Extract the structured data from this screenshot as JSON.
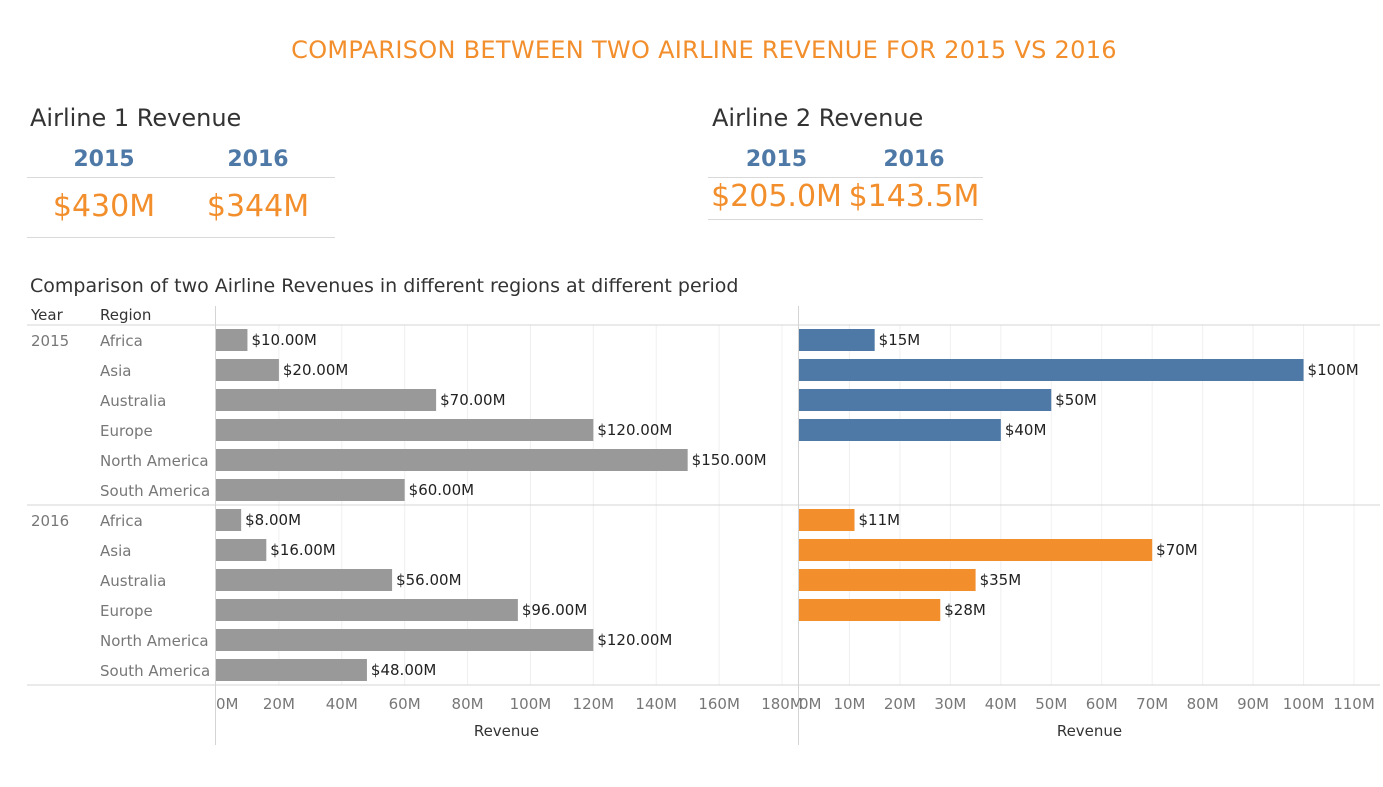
{
  "title": "COMPARISON BETWEEN TWO AIRLINE REVENUE FOR 2015 VS 2016",
  "airline1": {
    "title": "Airline 1 Revenue",
    "year_2015": "2015",
    "year_2016": "2016",
    "value_2015": "$430M",
    "value_2016": "$344M"
  },
  "airline2": {
    "title": "Airline 2 Revenue",
    "year_2015": "2015",
    "year_2016": "2016",
    "value_2015": "$205.0M",
    "value_2016": "$143.5M"
  },
  "colors": {
    "title": "#f28e2b",
    "kpi_year": "#4e79a7",
    "kpi_value": "#f28e2b",
    "airline1_bar": "#999999",
    "airline2_2015_bar": "#4e79a7",
    "airline2_2016_bar": "#f28e2b"
  },
  "chart_data": {
    "type": "bar",
    "orientation": "horizontal",
    "title": "Comparison of two Airline Revenues in different regions at different period",
    "row_headers": [
      "Year",
      "Region"
    ],
    "groups": [
      {
        "year": "2015",
        "regions": [
          "Africa",
          "Asia",
          "Australia",
          "Europe",
          "North America",
          "South America"
        ]
      },
      {
        "year": "2016",
        "regions": [
          "Africa",
          "Asia",
          "Australia",
          "Europe",
          "North America",
          "South America"
        ]
      }
    ],
    "panels": [
      {
        "xlabel": "Revenue",
        "xlim": [
          0,
          180
        ],
        "ticks": [
          "0M",
          "20M",
          "40M",
          "60M",
          "80M",
          "100M",
          "120M",
          "140M",
          "160M",
          "180M"
        ],
        "tick_values": [
          0,
          20,
          40,
          60,
          80,
          100,
          120,
          140,
          160,
          180
        ],
        "values": [
          [
            10,
            20,
            70,
            120,
            150,
            60
          ],
          [
            8,
            16,
            56,
            96,
            120,
            48
          ]
        ],
        "labels": [
          [
            "$10.00M",
            "$20.00M",
            "$70.00M",
            "$120.00M",
            "$150.00M",
            "$60.00M"
          ],
          [
            "$8.00M",
            "$16.00M",
            "$56.00M",
            "$96.00M",
            "$120.00M",
            "$48.00M"
          ]
        ]
      },
      {
        "xlabel": "Revenue",
        "xlim": [
          0,
          114
        ],
        "ticks": [
          "0M",
          "10M",
          "20M",
          "30M",
          "40M",
          "50M",
          "60M",
          "70M",
          "80M",
          "90M",
          "100M",
          "110M"
        ],
        "tick_values": [
          0,
          10,
          20,
          30,
          40,
          50,
          60,
          70,
          80,
          90,
          100,
          110
        ],
        "values": [
          [
            15,
            100,
            50,
            40,
            null,
            null
          ],
          [
            11,
            70,
            35,
            28,
            null,
            null
          ]
        ],
        "labels": [
          [
            "$15M",
            "$100M",
            "$50M",
            "$40M",
            "",
            ""
          ],
          [
            "$11M",
            "$70M",
            "$35M",
            "$28M",
            "",
            ""
          ]
        ]
      }
    ],
    "grid": "vertical"
  }
}
